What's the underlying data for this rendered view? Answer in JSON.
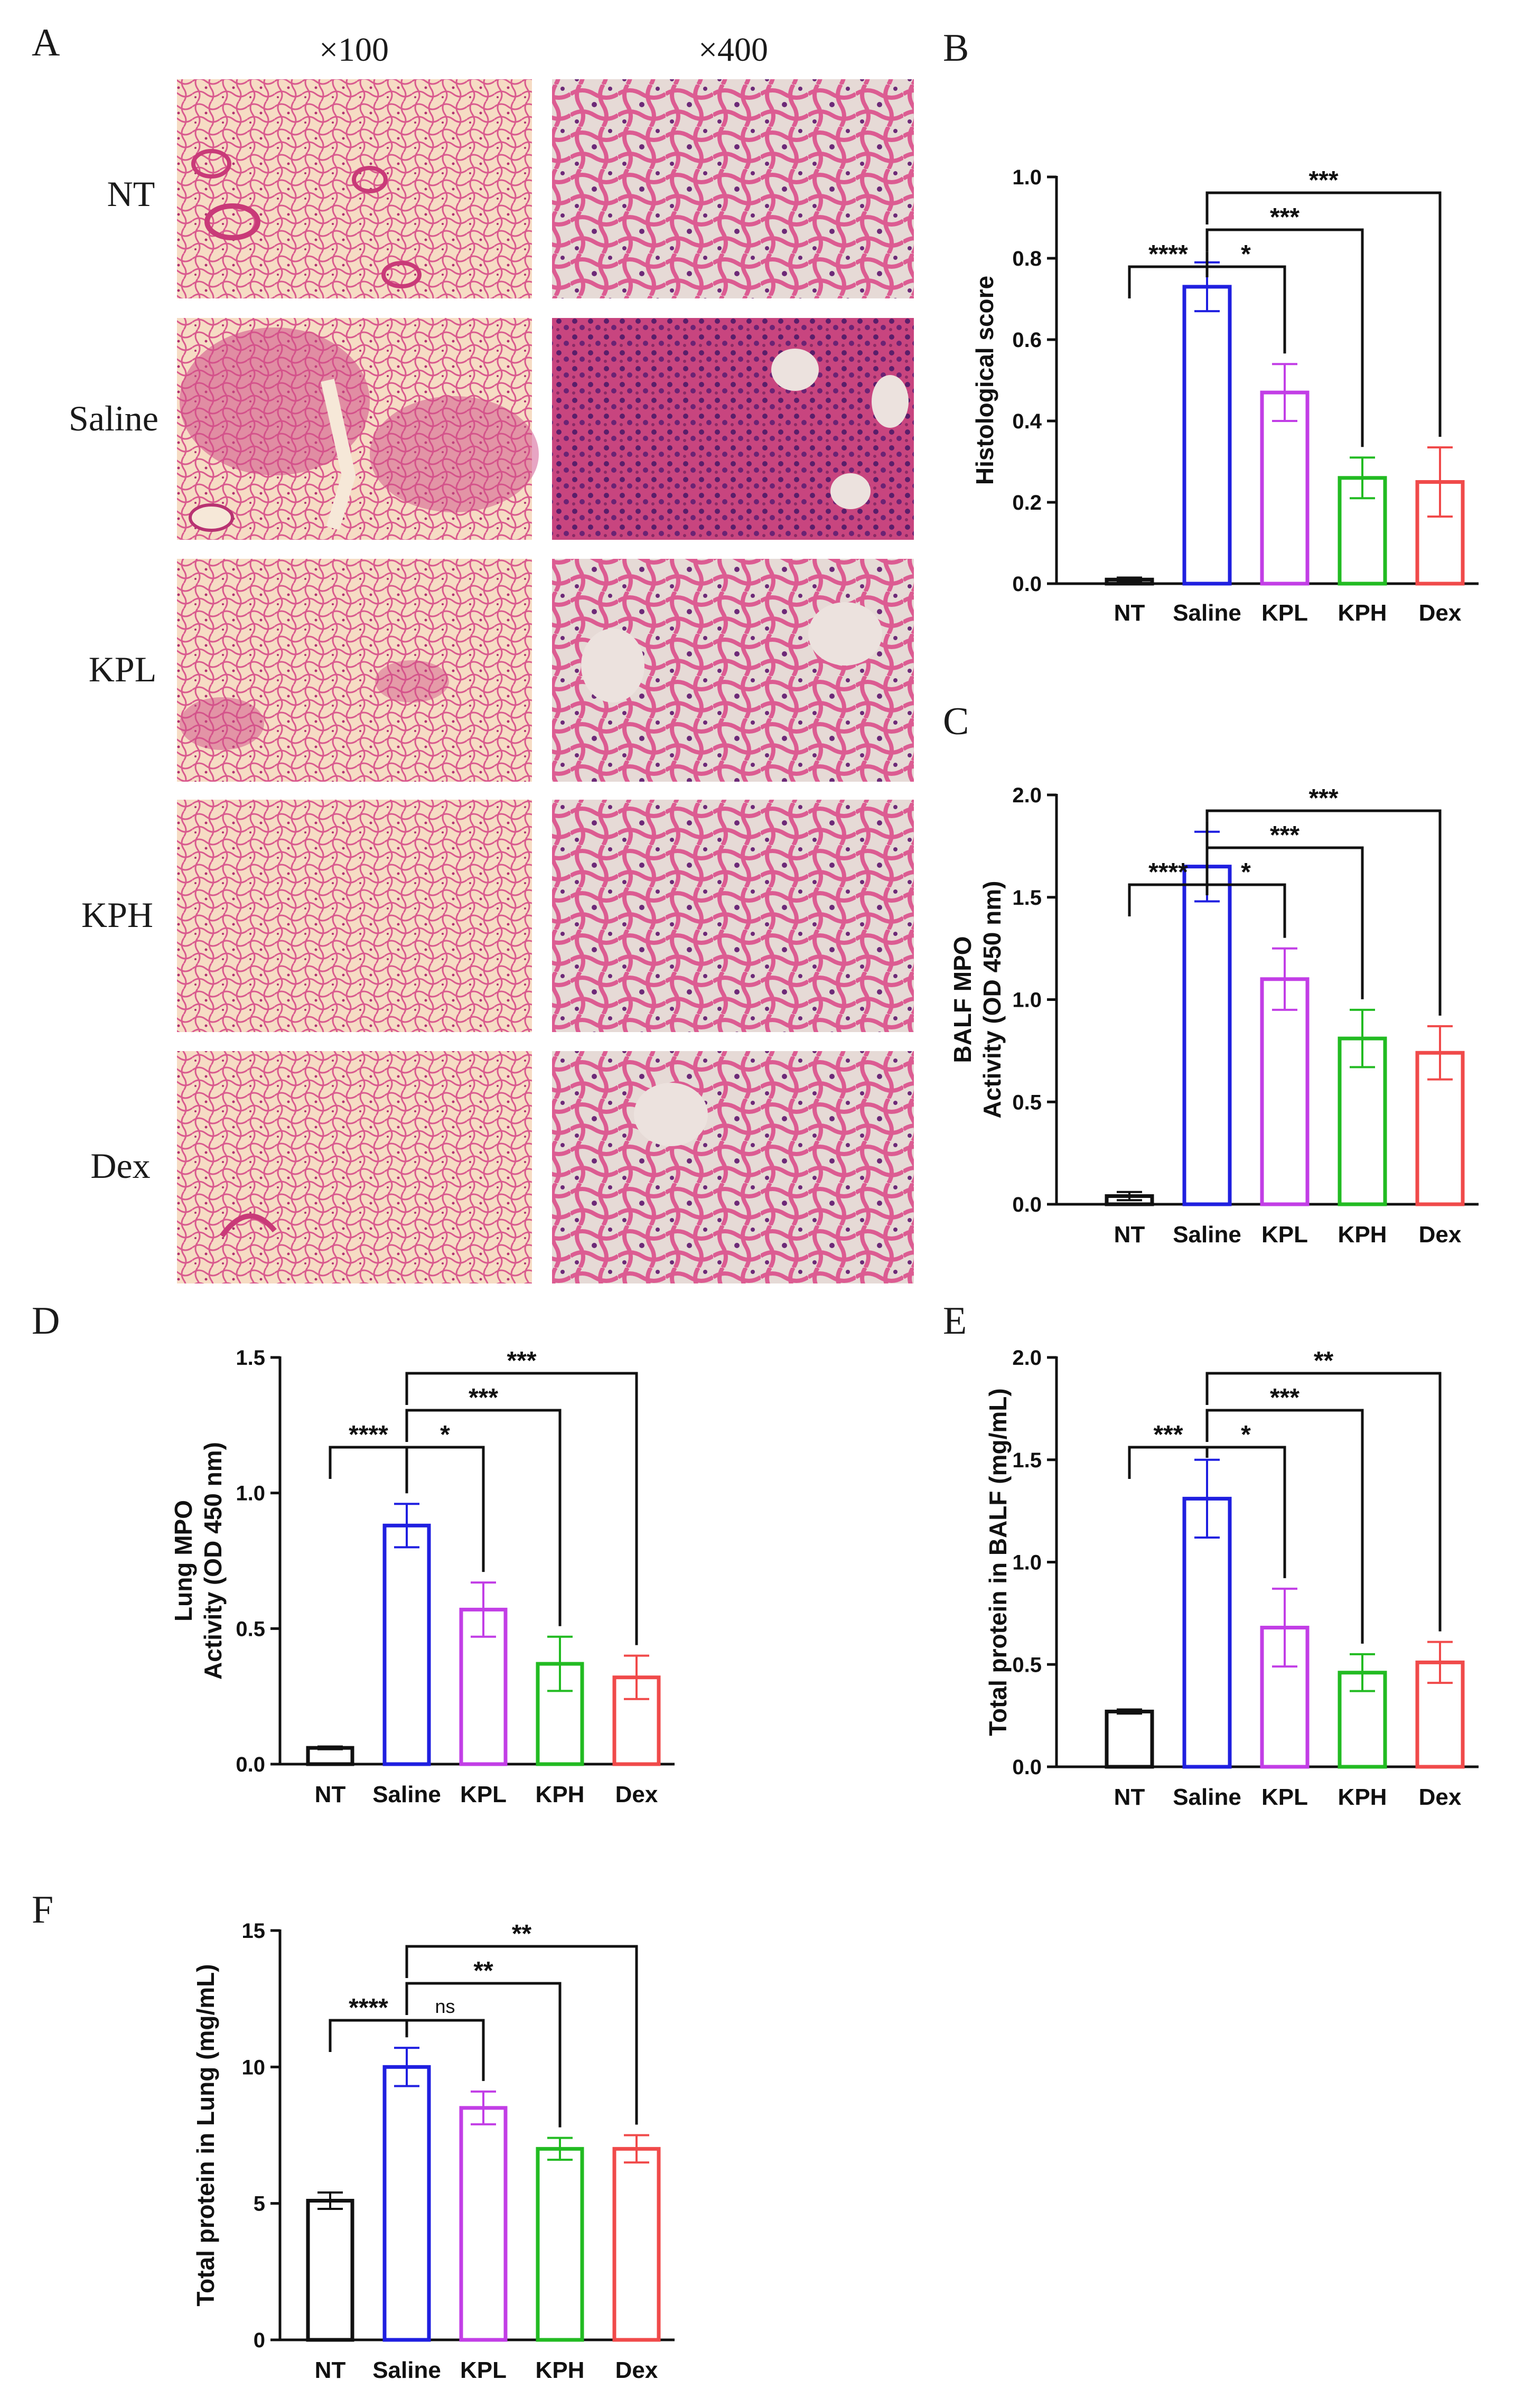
{
  "figure": {
    "panel_A": {
      "letter": "A",
      "magnifications": [
        "×100",
        "×400"
      ],
      "groups": [
        "NT",
        "Saline",
        "KPL",
        "KPH",
        "Dex"
      ]
    }
  },
  "colors": {
    "NT": "#111111",
    "Saline": "#1f1fe0",
    "KPL": "#c23ee6",
    "KPH": "#22bb22",
    "Dex": "#f04a4a",
    "tissue_bg_100": "#f6dcc4",
    "tissue_bg_400": "#e9dcd8",
    "tissue_stain": "#d24e86",
    "tissue_dense": "#8a2a66"
  },
  "chart_data": [
    {
      "panel": "B",
      "type": "bar",
      "categories": [
        "NT",
        "Saline",
        "KPL",
        "KPH",
        "Dex"
      ],
      "values": [
        0.01,
        0.73,
        0.47,
        0.26,
        0.25
      ],
      "errors": [
        0.005,
        0.06,
        0.07,
        0.05,
        0.085
      ],
      "ylabel": "Histological score",
      "ylim": [
        0,
        1.0
      ],
      "yticks": [
        0.0,
        0.2,
        0.4,
        0.6,
        0.8,
        1.0
      ],
      "tick_labels": [
        "0.0",
        "0.2",
        "0.4",
        "0.6",
        "0.8",
        "1.0"
      ],
      "significance": [
        {
          "from": 0,
          "to": 1,
          "label": "****",
          "level": 0
        },
        {
          "from": 1,
          "to": 2,
          "label": "*",
          "level": 0
        },
        {
          "from": 1,
          "to": 3,
          "label": "***",
          "level": 1
        },
        {
          "from": 1,
          "to": 4,
          "label": "***",
          "level": 2
        }
      ]
    },
    {
      "panel": "C",
      "type": "bar",
      "categories": [
        "NT",
        "Saline",
        "KPL",
        "KPH",
        "Dex"
      ],
      "values": [
        0.04,
        1.65,
        1.1,
        0.81,
        0.74
      ],
      "errors": [
        0.02,
        0.17,
        0.15,
        0.14,
        0.13
      ],
      "ylabel": "BALF MPO\nActivity (OD 450 nm)",
      "ylim": [
        0,
        2.0
      ],
      "yticks": [
        0.0,
        0.5,
        1.0,
        1.5,
        2.0
      ],
      "tick_labels": [
        "0.0",
        "0.5",
        "1.0",
        "1.5",
        "2.0"
      ],
      "significance": [
        {
          "from": 0,
          "to": 1,
          "label": "****",
          "level": 0
        },
        {
          "from": 1,
          "to": 2,
          "label": "*",
          "level": 0
        },
        {
          "from": 1,
          "to": 3,
          "label": "***",
          "level": 1
        },
        {
          "from": 1,
          "to": 4,
          "label": "***",
          "level": 2
        }
      ]
    },
    {
      "panel": "D",
      "type": "bar",
      "categories": [
        "NT",
        "Saline",
        "KPL",
        "KPH",
        "Dex"
      ],
      "values": [
        0.06,
        0.88,
        0.57,
        0.37,
        0.32
      ],
      "errors": [
        0.005,
        0.08,
        0.1,
        0.1,
        0.08
      ],
      "ylabel": "Lung MPO\nActivity (OD 450 nm)",
      "ylim": [
        0,
        1.5
      ],
      "yticks": [
        0.0,
        0.5,
        1.0,
        1.5
      ],
      "tick_labels": [
        "0.0",
        "0.5",
        "1.0",
        "1.5"
      ],
      "significance": [
        {
          "from": 0,
          "to": 1,
          "label": "****",
          "level": 0
        },
        {
          "from": 1,
          "to": 2,
          "label": "*",
          "level": 0
        },
        {
          "from": 1,
          "to": 3,
          "label": "***",
          "level": 1
        },
        {
          "from": 1,
          "to": 4,
          "label": "***",
          "level": 2
        }
      ]
    },
    {
      "panel": "E",
      "type": "bar",
      "categories": [
        "NT",
        "Saline",
        "KPL",
        "KPH",
        "Dex"
      ],
      "values": [
        0.27,
        1.31,
        0.68,
        0.46,
        0.51
      ],
      "errors": [
        0.01,
        0.19,
        0.19,
        0.09,
        0.1
      ],
      "ylabel": "Total protein in BALF (mg/mL)",
      "ylim": [
        0,
        2.0
      ],
      "yticks": [
        0.0,
        0.5,
        1.0,
        1.5,
        2.0
      ],
      "tick_labels": [
        "0.0",
        "0.5",
        "1.0",
        "1.5",
        "2.0"
      ],
      "significance": [
        {
          "from": 0,
          "to": 1,
          "label": "***",
          "level": 0
        },
        {
          "from": 1,
          "to": 2,
          "label": "*",
          "level": 0
        },
        {
          "from": 1,
          "to": 3,
          "label": "***",
          "level": 1
        },
        {
          "from": 1,
          "to": 4,
          "label": "**",
          "level": 2
        }
      ]
    },
    {
      "panel": "F",
      "type": "bar",
      "categories": [
        "NT",
        "Saline",
        "KPL",
        "KPH",
        "Dex"
      ],
      "values": [
        5.1,
        10.0,
        8.5,
        7.0,
        7.0
      ],
      "errors": [
        0.3,
        0.7,
        0.6,
        0.4,
        0.5
      ],
      "ylabel": "Total protein in Lung (mg/mL)",
      "ylim": [
        0,
        15
      ],
      "yticks": [
        0,
        5,
        10,
        15
      ],
      "tick_labels": [
        "0",
        "5",
        "10",
        "15"
      ],
      "significance": [
        {
          "from": 0,
          "to": 1,
          "label": "****",
          "level": 0
        },
        {
          "from": 1,
          "to": 2,
          "label": "ns",
          "level": 0
        },
        {
          "from": 1,
          "to": 3,
          "label": "**",
          "level": 1
        },
        {
          "from": 1,
          "to": 4,
          "label": "**",
          "level": 2
        }
      ]
    }
  ]
}
